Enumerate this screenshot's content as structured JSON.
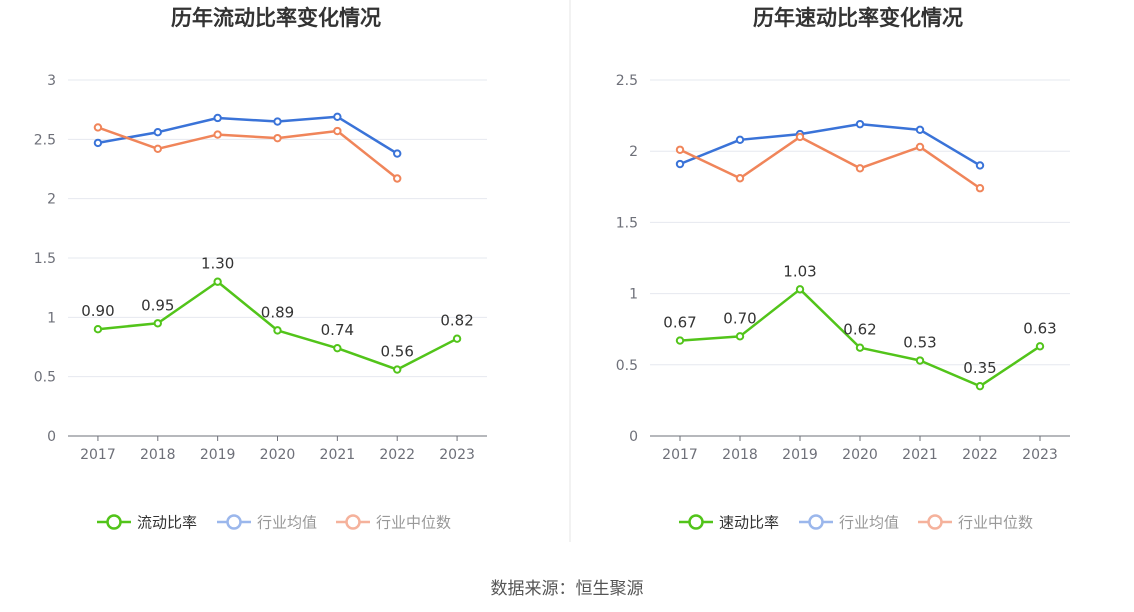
{
  "source": "数据来源：恒生聚源",
  "colors": {
    "primary": "#52c41a",
    "industry_avg": "#3a73d8",
    "industry_median": "#f0855a",
    "legend_avg": "#9bb7ec",
    "legend_median": "#f5b29c"
  },
  "chart_data": [
    {
      "type": "line",
      "title": "历年流动比率变化情况",
      "categories": [
        "2017",
        "2018",
        "2019",
        "2020",
        "2021",
        "2022",
        "2023"
      ],
      "ylim": [
        0,
        3
      ],
      "yticks": [
        "0",
        "0.5",
        "1",
        "1.5",
        "2",
        "2.5",
        "3"
      ],
      "ytick_values": [
        0,
        0.5,
        1,
        1.5,
        2,
        2.5,
        3
      ],
      "grid": true,
      "legend_position": "bottom",
      "series": [
        {
          "name": "流动比率",
          "values": [
            0.9,
            0.95,
            1.3,
            0.89,
            0.74,
            0.56,
            0.82
          ],
          "labels": [
            "0.90",
            "0.95",
            "1.30",
            "0.89",
            "0.74",
            "0.56",
            "0.82"
          ]
        },
        {
          "name": "行业均值",
          "values": [
            2.47,
            2.56,
            2.68,
            2.65,
            2.69,
            2.38,
            null
          ]
        },
        {
          "name": "行业中位数",
          "values": [
            2.6,
            2.42,
            2.54,
            2.51,
            2.57,
            2.17,
            null
          ]
        }
      ]
    },
    {
      "type": "line",
      "title": "历年速动比率变化情况",
      "categories": [
        "2017",
        "2018",
        "2019",
        "2020",
        "2021",
        "2022",
        "2023"
      ],
      "ylim": [
        0,
        2.5
      ],
      "yticks": [
        "0",
        "0.5",
        "1",
        "1.5",
        "2",
        "2.5"
      ],
      "ytick_values": [
        0,
        0.5,
        1,
        1.5,
        2,
        2.5
      ],
      "grid": true,
      "legend_position": "bottom",
      "series": [
        {
          "name": "速动比率",
          "values": [
            0.67,
            0.7,
            1.03,
            0.62,
            0.53,
            0.35,
            0.63
          ],
          "labels": [
            "0.67",
            "0.70",
            "1.03",
            "0.62",
            "0.53",
            "0.35",
            "0.63"
          ]
        },
        {
          "name": "行业均值",
          "values": [
            1.91,
            2.08,
            2.12,
            2.19,
            2.15,
            1.9,
            null
          ]
        },
        {
          "name": "行业中位数",
          "values": [
            2.01,
            1.81,
            2.1,
            1.88,
            2.03,
            1.74,
            null
          ]
        }
      ]
    }
  ]
}
